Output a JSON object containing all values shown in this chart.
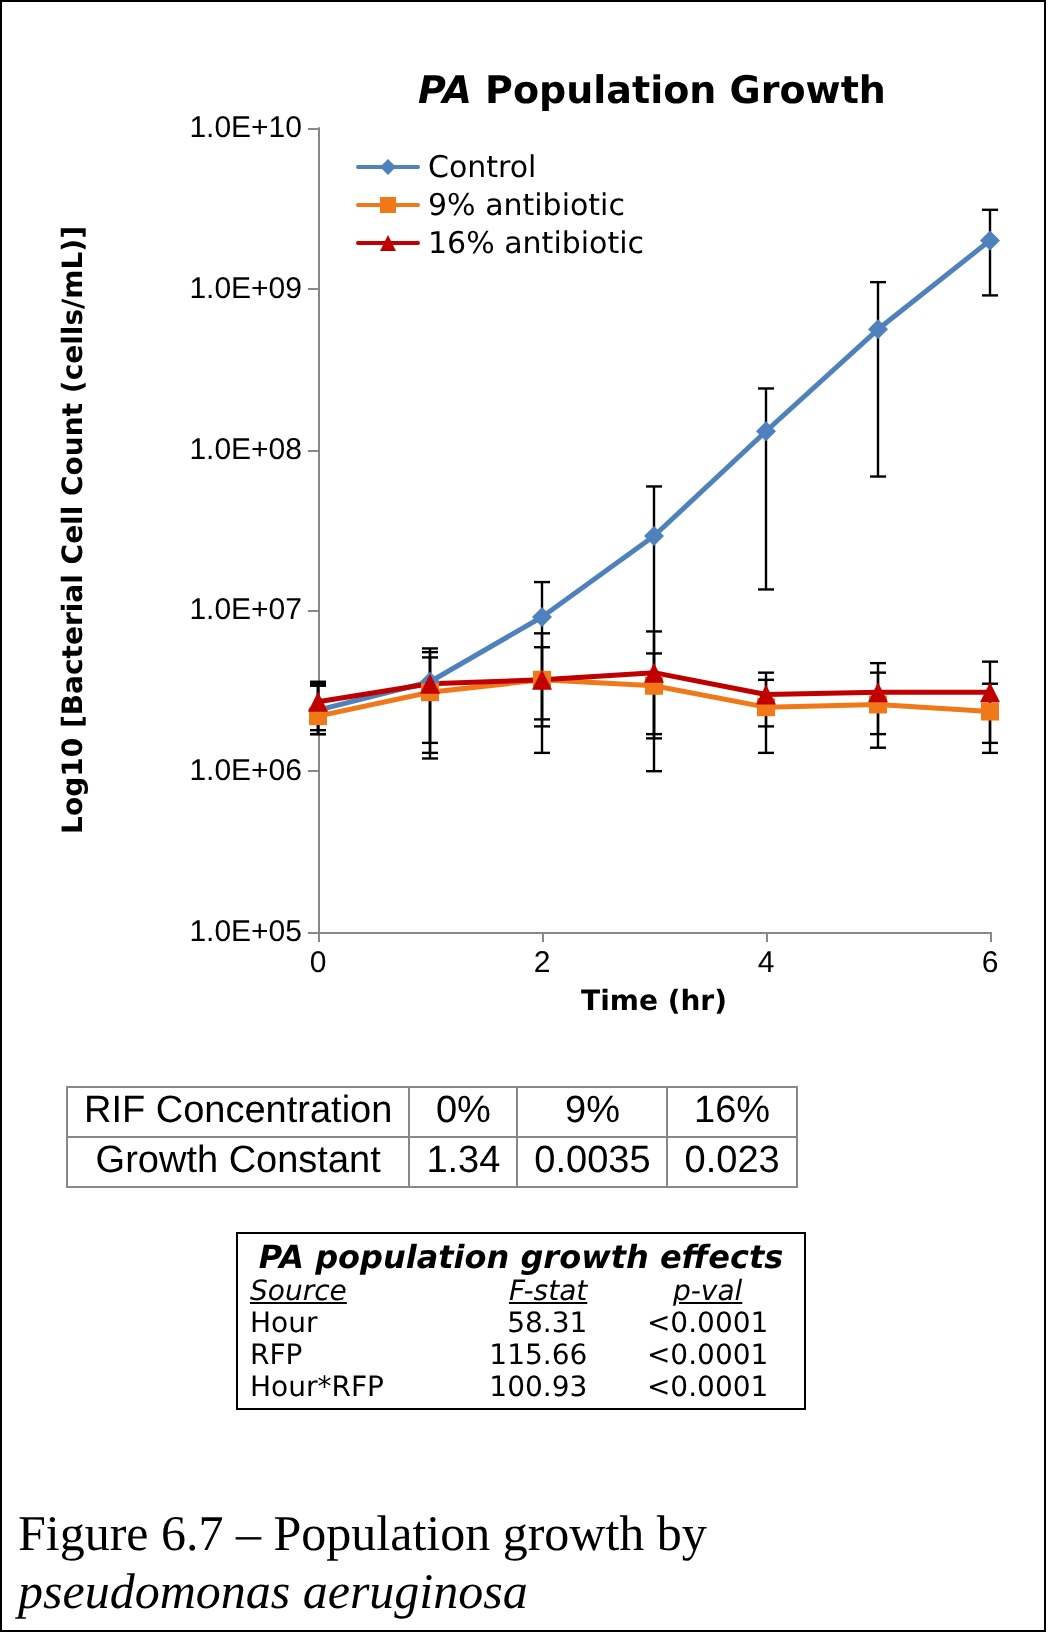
{
  "chart_data": {
    "type": "line",
    "title": "PA Population Growth",
    "xlabel": "Time (hr)",
    "ylabel": "Log10 [Bacterial Cell Count (cells/mL)]",
    "x": [
      0,
      1,
      2,
      3,
      4,
      5,
      6
    ],
    "series": [
      {
        "name": "Control",
        "color": "#4f81bd",
        "marker": "diamond",
        "values": [
          2400000,
          3600000,
          9100000,
          29000000,
          130000000,
          560000000,
          2000000000
        ],
        "errors": [
          [
            1700000,
            3600000
          ],
          [
            1200000,
            5800000
          ],
          [
            1300000,
            15000000
          ],
          [
            1000000,
            59000000
          ],
          [
            13500000,
            240000000
          ],
          [
            68000000,
            1100000000
          ],
          [
            910000000,
            3100000000
          ]
        ]
      },
      {
        "name": "9% antibiotic",
        "color": "#f07818",
        "marker": "square",
        "values": [
          2200000,
          3100000,
          3700000,
          3400000,
          2500000,
          2600000,
          2350000
        ],
        "errors": [
          [
            1700000,
            3400000
          ],
          [
            1300000,
            5100000
          ],
          [
            2100000,
            5900000
          ],
          [
            1700000,
            5400000
          ],
          [
            1300000,
            3700000
          ],
          [
            1400000,
            4100000
          ],
          [
            1300000,
            3500000
          ]
        ]
      },
      {
        "name": "16% antibiotic",
        "color": "#c00000",
        "marker": "triangle",
        "values": [
          2700000,
          3500000,
          3700000,
          4100000,
          3000000,
          3100000,
          3100000
        ],
        "errors": [
          [
            1800000,
            3500000
          ],
          [
            1500000,
            5500000
          ],
          [
            1900000,
            7200000
          ],
          [
            1600000,
            7400000
          ],
          [
            1900000,
            4100000
          ],
          [
            1700000,
            4700000
          ],
          [
            1500000,
            4800000
          ]
        ]
      }
    ],
    "xlim": [
      0,
      6
    ],
    "xticks": [
      0,
      2,
      4,
      6
    ],
    "ylim": [
      100000,
      10000000000
    ],
    "yticks": [
      {
        "value": 100000,
        "label": "1.0E+05"
      },
      {
        "value": 1000000,
        "label": "1.0E+06"
      },
      {
        "value": 10000000,
        "label": "1.0E+07"
      },
      {
        "value": 100000000,
        "label": "1.0E+08"
      },
      {
        "value": 1000000000,
        "label": "1.0E+09"
      },
      {
        "value": 10000000000,
        "label": "1.0E+10"
      }
    ],
    "log": "y",
    "grid": false,
    "legend": "top left",
    "line_style": "solid",
    "annotations": [
      "RIF Concentration",
      "0%",
      "9%",
      "16%",
      "Growth Constant",
      "1.34",
      "0.0035",
      "0.023",
      "PA population  growth effects",
      "Source",
      "F-stat",
      "p-val",
      "Hour",
      "58.31",
      "<0.0001",
      "RFP",
      "115.66",
      "<0.0001",
      "Hour*RFP",
      "100.93",
      "<0.0001",
      "Figure 6.7 – Population growth by",
      "pseudomonas aeruginosa"
    ]
  }
}
